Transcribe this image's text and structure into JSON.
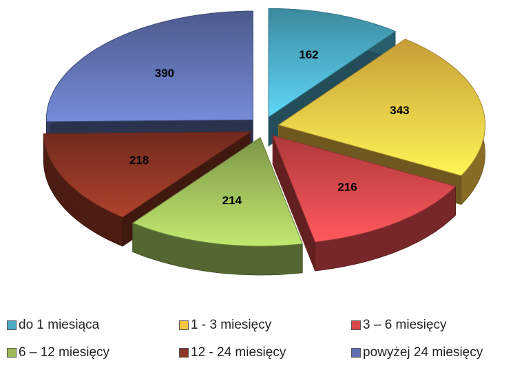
{
  "chart_data": {
    "type": "pie",
    "categories": [
      "do 1 miesiąca",
      "1 - 3 miesięcy",
      "3 – 6 miesięcy",
      "6 – 12 miesięcy",
      "12 - 24 miesięcy",
      "powyżej 24 miesięcy"
    ],
    "values": [
      162,
      343,
      216,
      214,
      218,
      390
    ],
    "colors": [
      "#4bacc6",
      "#f6c445",
      "#d9474a",
      "#9bbb59",
      "#8c3524",
      "#5f6fae"
    ],
    "legend": "bottom"
  }
}
